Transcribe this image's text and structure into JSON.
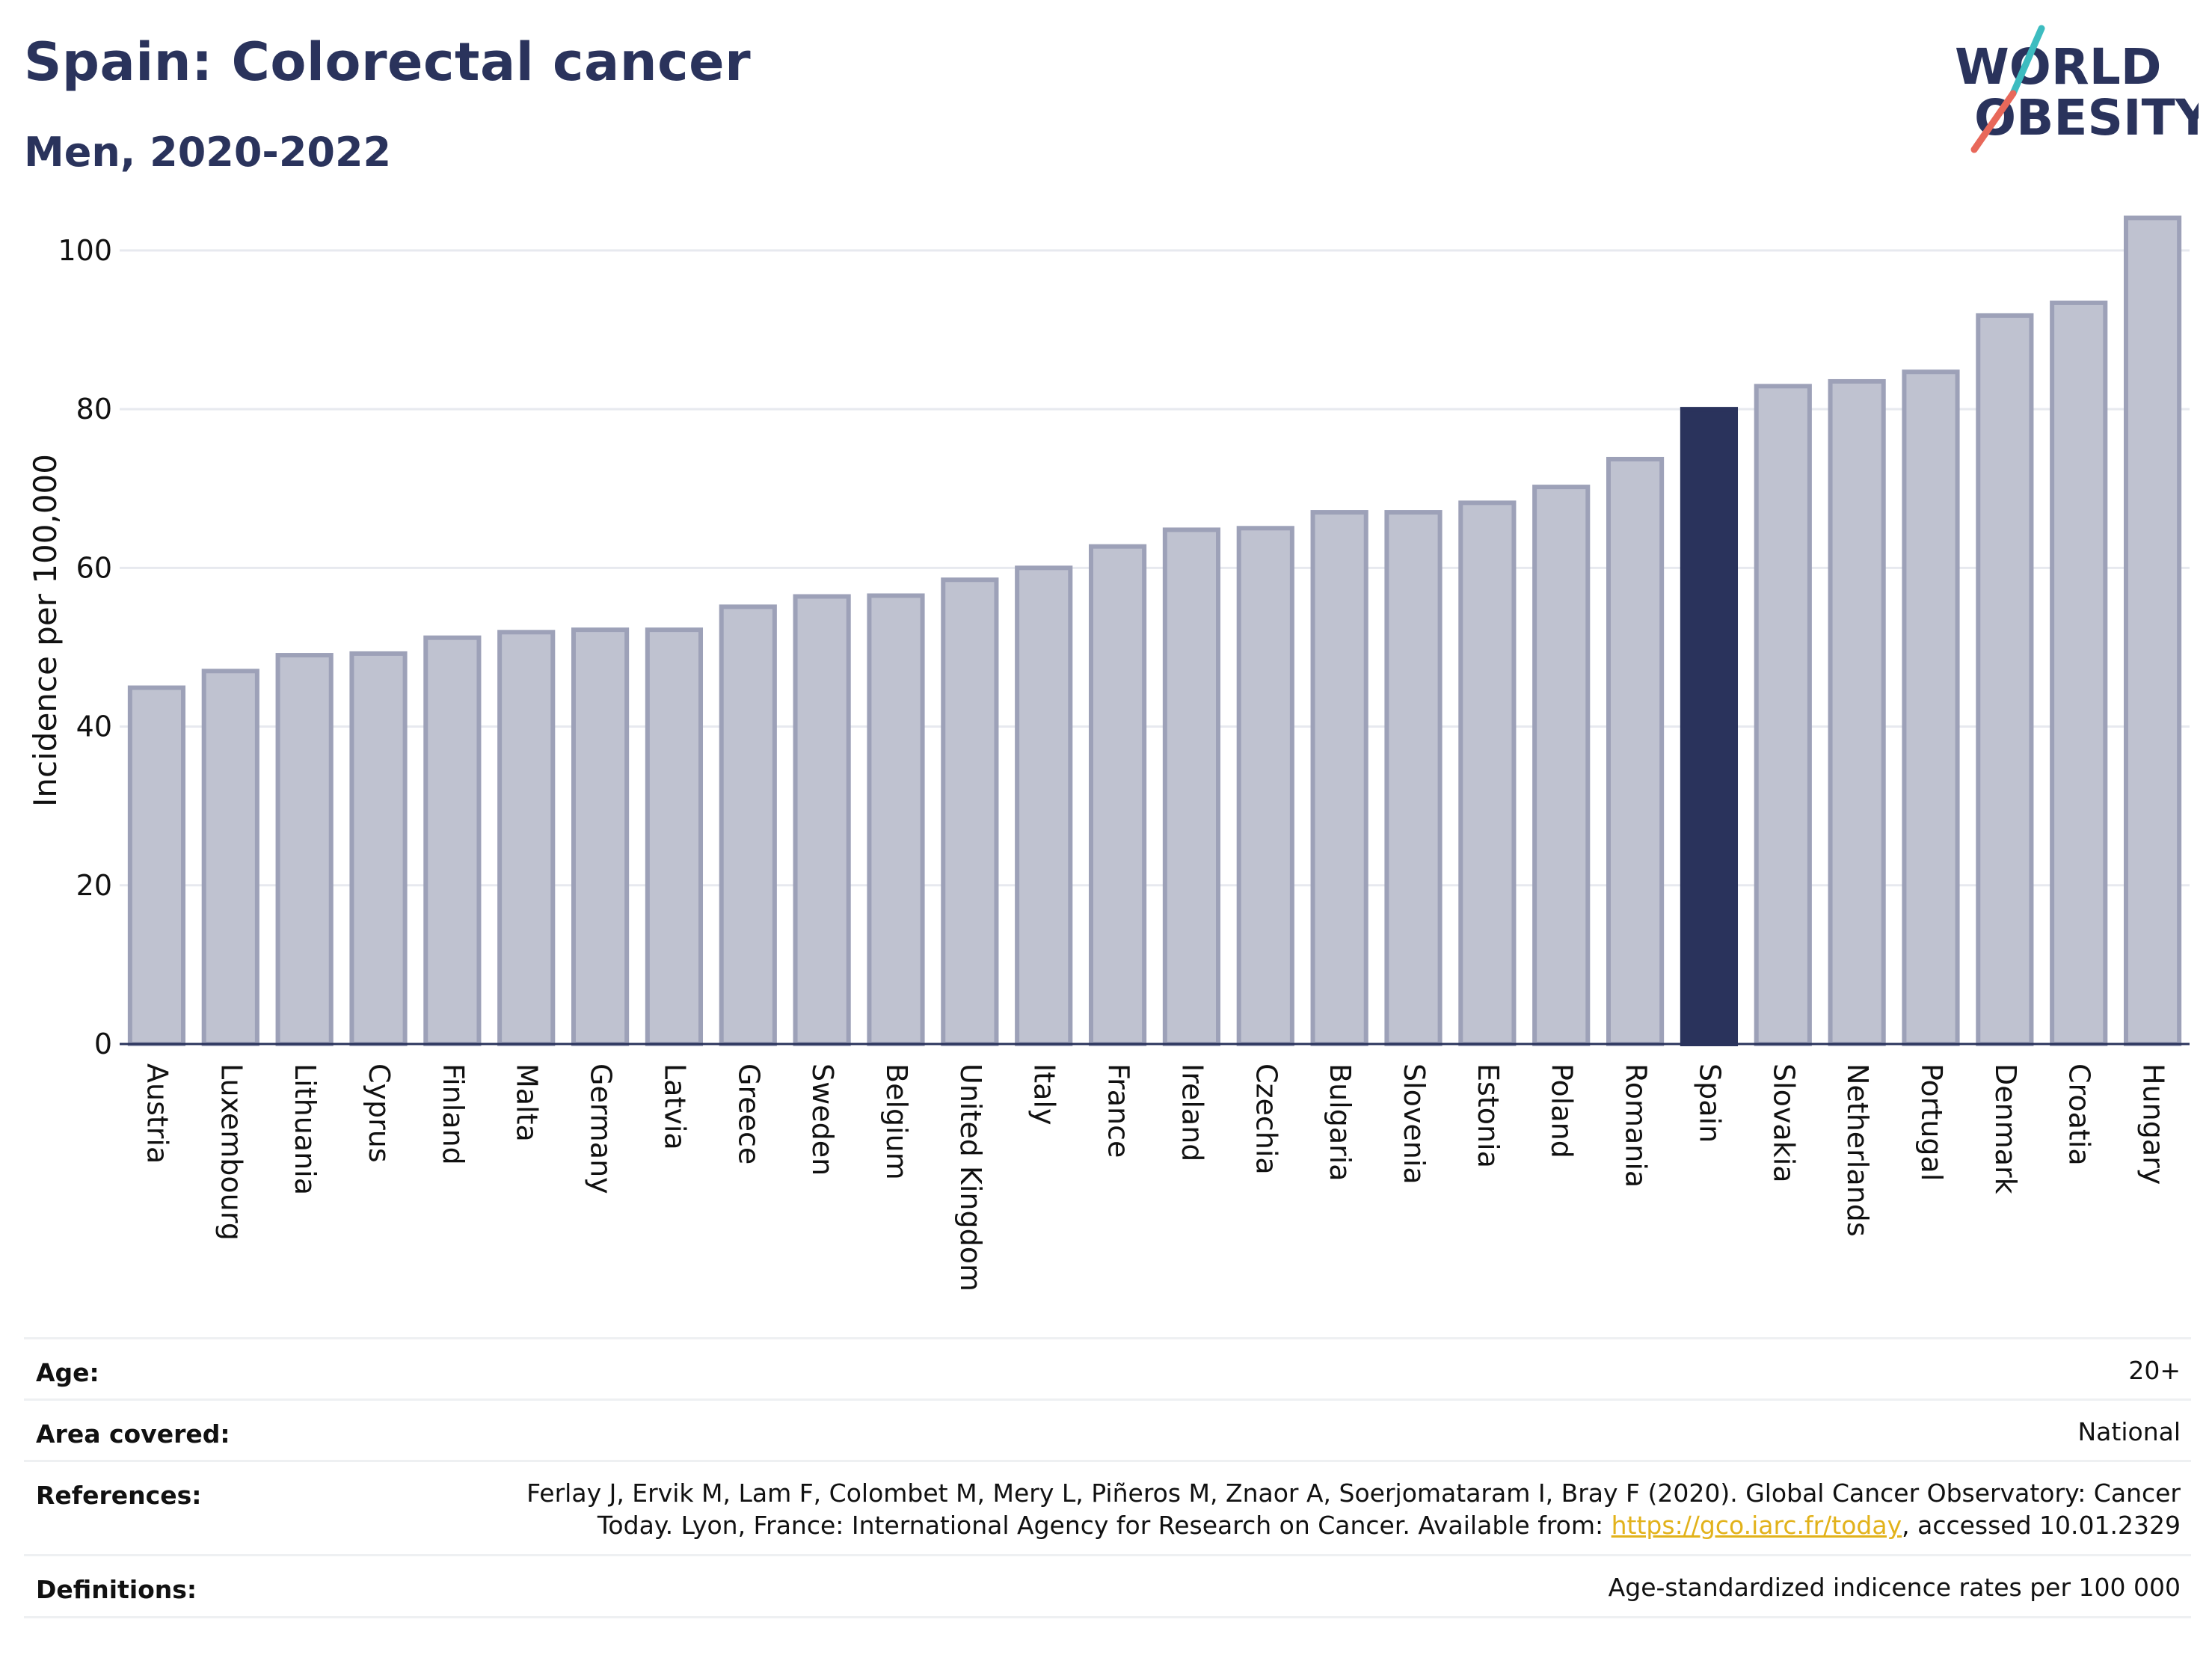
{
  "header": {
    "title": "Spain: Colorectal cancer",
    "subtitle": "Men, 2020-2022"
  },
  "logo": {
    "line1": "WORLD",
    "line2": "OBESITY",
    "text_color": "#2a335c",
    "slash_top_color": "#3dbcc0",
    "slash_bottom_color": "#e8685a"
  },
  "colors": {
    "bar_default": "#bfc2d0",
    "bar_border": "#9da1b8",
    "bar_highlight": "#2a335c",
    "grid": "#e7e9ef",
    "axis": "#2a335c"
  },
  "chart_data": {
    "type": "bar",
    "title": "",
    "xlabel": "",
    "ylabel": "Incidence per 100,000",
    "ylim": [
      0,
      108
    ],
    "yticks": [
      0,
      20,
      40,
      60,
      80,
      100
    ],
    "grid": true,
    "highlight": "Spain",
    "categories": [
      "Austria",
      "Luxembourg",
      "Lithuania",
      "Cyprus",
      "Finland",
      "Malta",
      "Germany",
      "Latvia",
      "Greece",
      "Sweden",
      "Belgium",
      "United Kingdom",
      "Italy",
      "France",
      "Ireland",
      "Czechia",
      "Bulgaria",
      "Slovenia",
      "Estonia",
      "Poland",
      "Romania",
      "Spain",
      "Slovakia",
      "Netherlands",
      "Portugal",
      "Denmark",
      "Croatia",
      "Hungary"
    ],
    "values": [
      44.9,
      47.0,
      49.0,
      49.2,
      51.2,
      51.9,
      52.2,
      52.2,
      55.1,
      56.4,
      56.5,
      58.5,
      60.0,
      62.7,
      64.8,
      65.0,
      67.0,
      67.0,
      68.2,
      70.2,
      73.7,
      80.0,
      82.9,
      83.5,
      84.7,
      91.8,
      93.4,
      104.1
    ]
  },
  "meta": {
    "age_label": "Age:",
    "age_value": "20+",
    "area_label": "Area covered:",
    "area_value": "National",
    "references_label": "References:",
    "references_line1": "Ferlay J, Ervik M, Lam F, Colombet M, Mery L, Piñeros M, Znaor A, Soerjomataram I, Bray F (2020). Global Cancer Observatory: Cancer",
    "references_line2_pre": "Today. Lyon, France: International Agency for Research on Cancer. Available from: ",
    "references_link": "https://gco.iarc.fr/today",
    "references_line2_post": ", accessed 10.01.2329",
    "definitions_label": "Definitions:",
    "definitions_value": "Age-standardized indicence rates per 100 000"
  }
}
